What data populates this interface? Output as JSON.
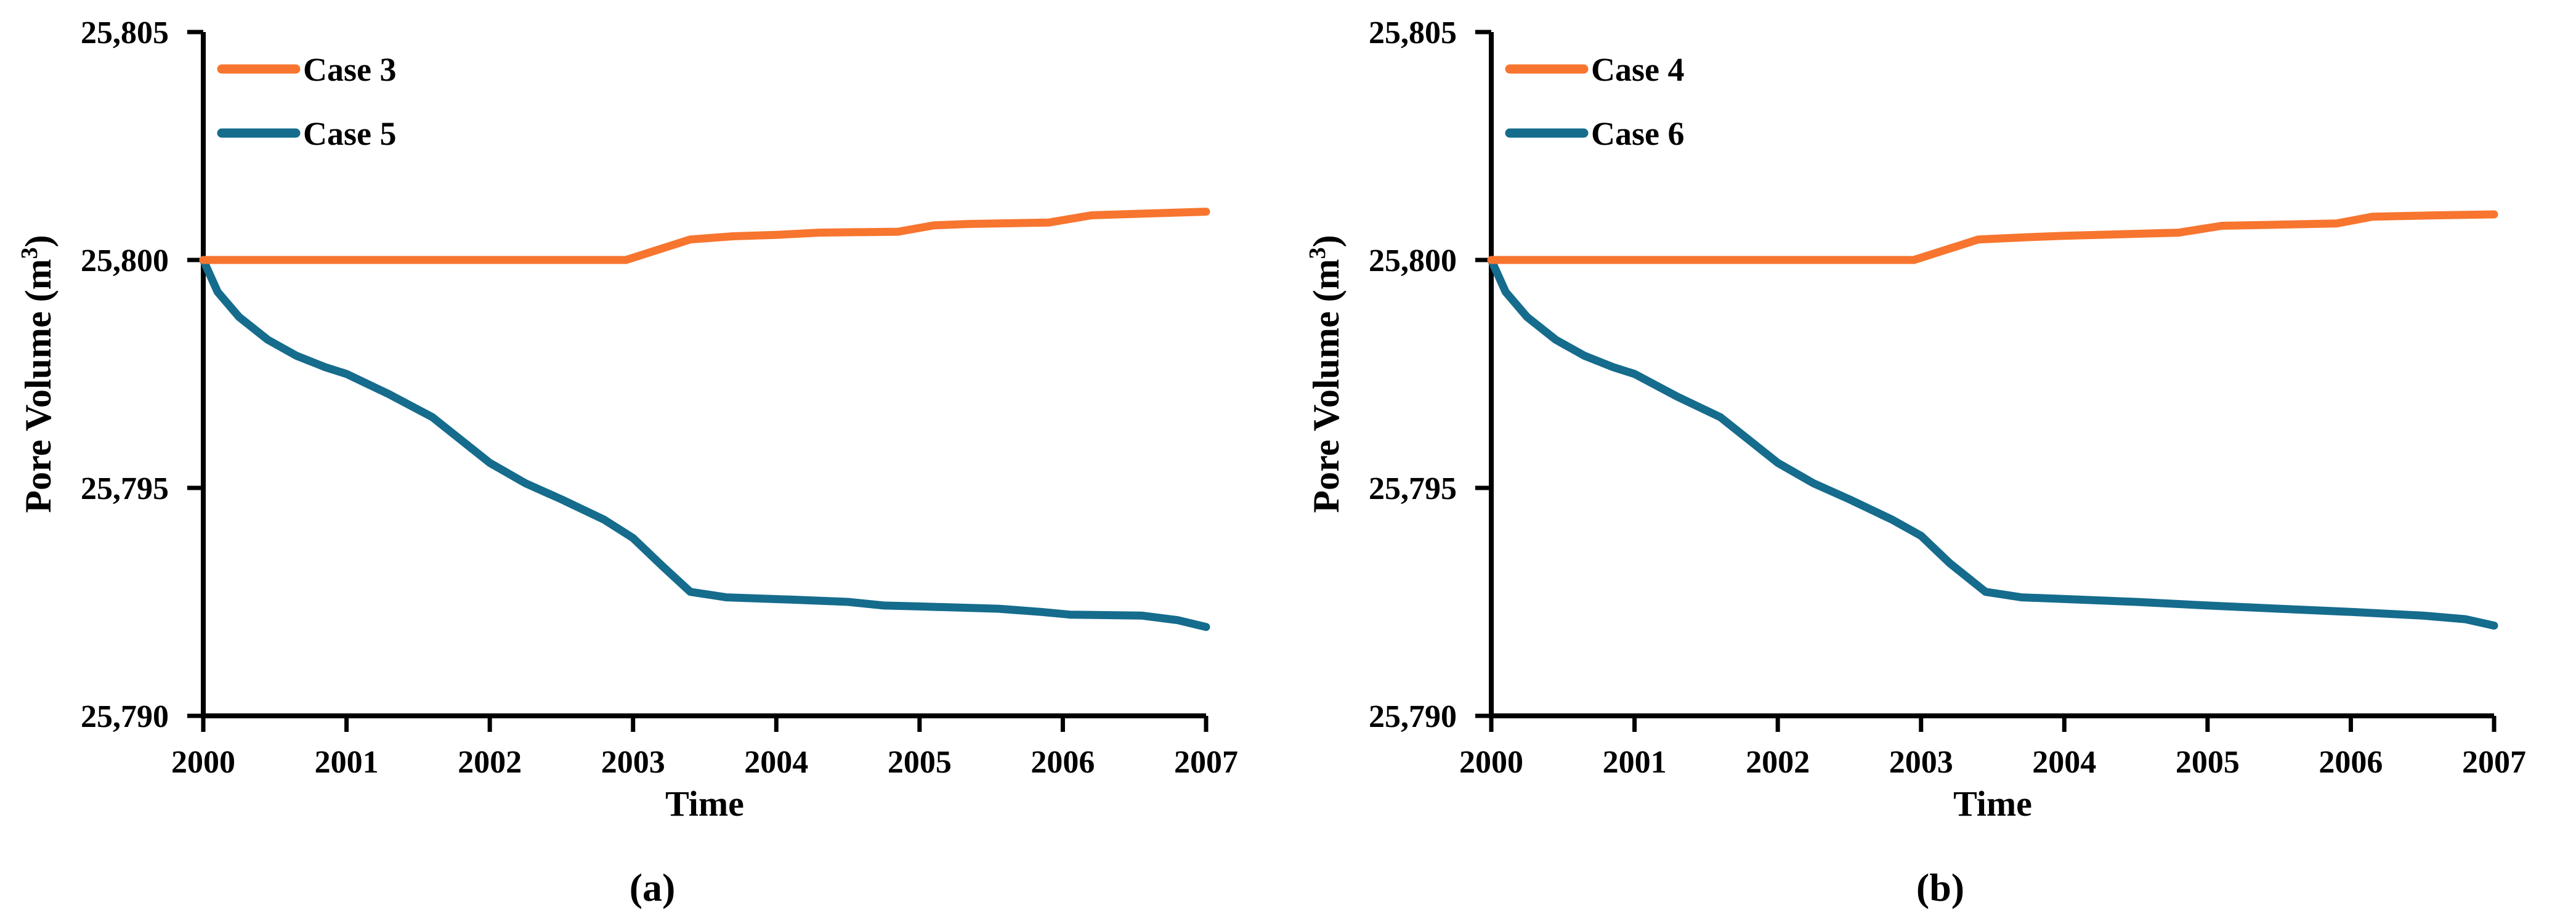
{
  "figure": {
    "background": "#ffffff",
    "axis_color": "#000000",
    "series_colors": {
      "orange": "#F7752F",
      "teal": "#156C8D"
    }
  },
  "chart_data": [
    {
      "type": "line",
      "panel_caption": "(a)",
      "xlabel": "Time",
      "ylabel": "Pore Volume (m³)",
      "ylabel_parts": [
        "Pore Volume (m",
        "3",
        ")"
      ],
      "xlim": [
        2000,
        2007
      ],
      "ylim": [
        25790,
        25805
      ],
      "grid": false,
      "legend_position": "upper-left-inside",
      "x_ticks": [
        {
          "value": 2000,
          "label": "2000"
        },
        {
          "value": 2001,
          "label": "2001"
        },
        {
          "value": 2002,
          "label": "2002"
        },
        {
          "value": 2003,
          "label": "2003"
        },
        {
          "value": 2004,
          "label": "2004"
        },
        {
          "value": 2005,
          "label": "2005"
        },
        {
          "value": 2006,
          "label": "2006"
        },
        {
          "value": 2007,
          "label": "2007"
        }
      ],
      "y_ticks": [
        {
          "value": 25790,
          "label": "25,790"
        },
        {
          "value": 25795,
          "label": "25,795"
        },
        {
          "value": 25800,
          "label": "25,800"
        },
        {
          "value": 25805,
          "label": "25,805"
        }
      ],
      "series": [
        {
          "name": "Case 3",
          "color_key": "orange",
          "points": [
            [
              2000,
              25800
            ],
            [
              2002.95,
              25800
            ],
            [
              2003.15,
              25800.2
            ],
            [
              2003.4,
              25800.45
            ],
            [
              2003.7,
              25800.52
            ],
            [
              2004,
              25800.55
            ],
            [
              2004.3,
              25800.6
            ],
            [
              2004.85,
              25800.62
            ],
            [
              2005.1,
              25800.76
            ],
            [
              2005.35,
              25800.79
            ],
            [
              2005.9,
              25800.82
            ],
            [
              2006.2,
              25800.98
            ],
            [
              2006.6,
              25801.02
            ],
            [
              2007,
              25801.06
            ]
          ]
        },
        {
          "name": "Case 5",
          "color_key": "teal",
          "points": [
            [
              2000,
              25800
            ],
            [
              2000.1,
              25799.3
            ],
            [
              2000.25,
              25798.75
            ],
            [
              2000.45,
              25798.25
            ],
            [
              2000.65,
              25797.9
            ],
            [
              2000.85,
              25797.65
            ],
            [
              2001,
              25797.5
            ],
            [
              2001.3,
              25797.05
            ],
            [
              2001.6,
              25796.55
            ],
            [
              2001.8,
              25796.05
            ],
            [
              2002,
              25795.55
            ],
            [
              2002.25,
              25795.1
            ],
            [
              2002.5,
              25794.75
            ],
            [
              2002.8,
              25794.3
            ],
            [
              2003,
              25793.9
            ],
            [
              2003.2,
              25793.3
            ],
            [
              2003.4,
              25792.72
            ],
            [
              2003.65,
              25792.6
            ],
            [
              2004.1,
              25792.55
            ],
            [
              2004.5,
              25792.5
            ],
            [
              2004.75,
              25792.42
            ],
            [
              2005,
              25792.4
            ],
            [
              2005.55,
              25792.35
            ],
            [
              2005.85,
              25792.28
            ],
            [
              2006.05,
              25792.22
            ],
            [
              2006.55,
              25792.2
            ],
            [
              2006.8,
              25792.1
            ],
            [
              2007,
              25791.95
            ]
          ]
        }
      ]
    },
    {
      "type": "line",
      "panel_caption": "(b)",
      "xlabel": "Time",
      "ylabel": "Pore Volume (m³)",
      "ylabel_parts": [
        "Pore Volume (m",
        "3",
        ")"
      ],
      "xlim": [
        2000,
        2007
      ],
      "ylim": [
        25790,
        25805
      ],
      "grid": false,
      "legend_position": "upper-left-inside",
      "x_ticks": [
        {
          "value": 2000,
          "label": "2000"
        },
        {
          "value": 2001,
          "label": "2001"
        },
        {
          "value": 2002,
          "label": "2002"
        },
        {
          "value": 2003,
          "label": "2003"
        },
        {
          "value": 2004,
          "label": "2004"
        },
        {
          "value": 2005,
          "label": "2005"
        },
        {
          "value": 2006,
          "label": "2006"
        },
        {
          "value": 2007,
          "label": "2007"
        }
      ],
      "y_ticks": [
        {
          "value": 25790,
          "label": "25,790"
        },
        {
          "value": 25795,
          "label": "25,795"
        },
        {
          "value": 25800,
          "label": "25,800"
        },
        {
          "value": 25805,
          "label": "25,805"
        }
      ],
      "series": [
        {
          "name": "Case 4",
          "color_key": "orange",
          "points": [
            [
              2000,
              25800
            ],
            [
              2002.95,
              25800
            ],
            [
              2003.15,
              25800.2
            ],
            [
              2003.4,
              25800.45
            ],
            [
              2003.75,
              25800.5
            ],
            [
              2004,
              25800.53
            ],
            [
              2004.8,
              25800.6
            ],
            [
              2005.1,
              25800.75
            ],
            [
              2005.9,
              25800.8
            ],
            [
              2006.15,
              25800.95
            ],
            [
              2006.6,
              25800.98
            ],
            [
              2007,
              25801.0
            ]
          ]
        },
        {
          "name": "Case 6",
          "color_key": "teal",
          "points": [
            [
              2000,
              25800
            ],
            [
              2000.1,
              25799.3
            ],
            [
              2000.25,
              25798.75
            ],
            [
              2000.45,
              25798.25
            ],
            [
              2000.65,
              25797.9
            ],
            [
              2000.85,
              25797.65
            ],
            [
              2001,
              25797.5
            ],
            [
              2001.3,
              25797.0
            ],
            [
              2001.6,
              25796.55
            ],
            [
              2001.8,
              25796.05
            ],
            [
              2002,
              25795.55
            ],
            [
              2002.25,
              25795.1
            ],
            [
              2002.5,
              25794.75
            ],
            [
              2002.8,
              25794.3
            ],
            [
              2003,
              25793.95
            ],
            [
              2003.2,
              25793.35
            ],
            [
              2003.45,
              25792.72
            ],
            [
              2003.7,
              25792.6
            ],
            [
              2004.1,
              25792.55
            ],
            [
              2004.5,
              25792.5
            ],
            [
              2005,
              25792.42
            ],
            [
              2005.5,
              25792.35
            ],
            [
              2006,
              25792.28
            ],
            [
              2006.5,
              25792.2
            ],
            [
              2006.8,
              25792.12
            ],
            [
              2007,
              25791.98
            ]
          ]
        }
      ]
    }
  ]
}
